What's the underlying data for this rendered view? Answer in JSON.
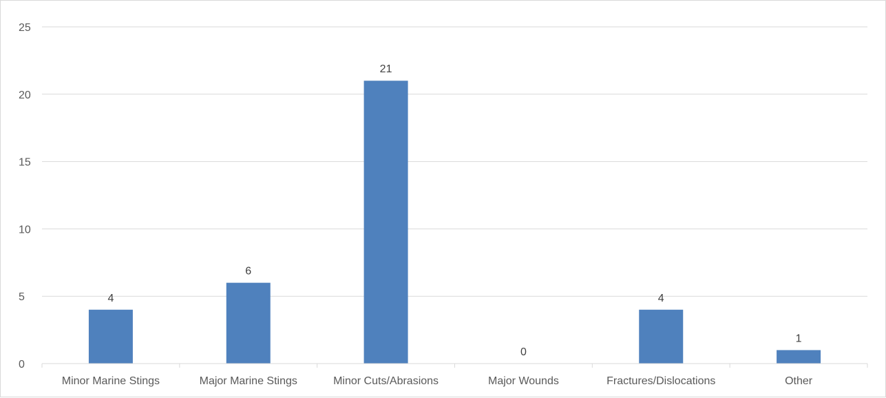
{
  "chart_data": {
    "type": "bar",
    "title": "",
    "xlabel": "",
    "ylabel": "",
    "categories": [
      "Minor Marine Stings",
      "Major Marine Stings",
      "Minor Cuts/Abrasions",
      "Major Wounds",
      "Fractures/Dislocations",
      "Other"
    ],
    "values": [
      4,
      6,
      21,
      0,
      4,
      1
    ],
    "ylim": [
      0,
      25
    ],
    "yticks": [
      "0",
      "5",
      "10",
      "15",
      "20",
      "25"
    ],
    "grid": true,
    "legend": "none",
    "bar_color": "#4f81bd",
    "data_labels": true
  }
}
